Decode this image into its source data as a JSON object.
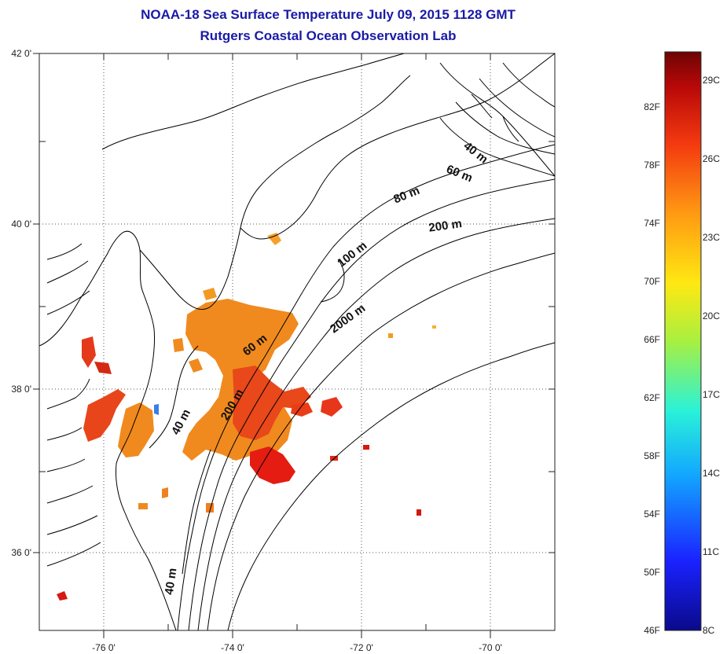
{
  "title": {
    "line1": "NOAA-18 Sea Surface Temperature July 09, 2015 1128 GMT",
    "line2": "Rutgers Coastal Ocean Observation Lab"
  },
  "map": {
    "lat_labels": [
      "42 0'",
      "40 0'",
      "38 0'",
      "36 0'"
    ],
    "lon_labels": [
      "-76 0'",
      "-74 0'",
      "-72 0'",
      "-70 0'"
    ],
    "depth_labels": [
      "40 m",
      "60 m",
      "80 m",
      "200 m",
      "100 m",
      "2000 m",
      "60 m",
      "200 m",
      "40 m",
      "40 m"
    ],
    "colors": {
      "land_outline": "#000000",
      "grid": "#555555",
      "sst_warm": "#f08a1e",
      "sst_hot": "#e82a12"
    }
  },
  "colorbar": {
    "fahrenheit_labels": [
      "82F",
      "78F",
      "74F",
      "70F",
      "66F",
      "62F",
      "58F",
      "54F",
      "50F",
      "46F"
    ],
    "celsius_labels": [
      "29C",
      "26C",
      "23C",
      "20C",
      "17C",
      "14C",
      "11C",
      "8C"
    ],
    "range_c": [
      8,
      31
    ],
    "colors": [
      "#0a0a8a",
      "#1a22ff",
      "#12a8ff",
      "#2af2d8",
      "#a8f040",
      "#ffe812",
      "#ff9a12",
      "#f43a10",
      "#b80808",
      "#6e0404"
    ]
  }
}
